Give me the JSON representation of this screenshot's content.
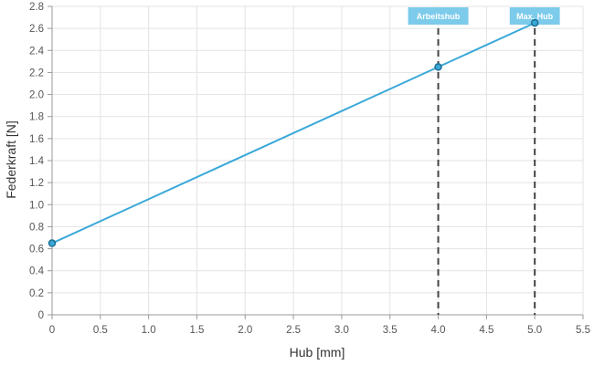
{
  "chart_data": {
    "type": "line",
    "xlabel": "Hub [mm]",
    "ylabel": "Federkraft [N]",
    "xlim": [
      0,
      5.5
    ],
    "ylim": [
      0,
      2.8
    ],
    "x_ticks": [
      0,
      0.5,
      1.0,
      1.5,
      2.0,
      2.5,
      3.0,
      3.5,
      4.0,
      4.5,
      5.0,
      5.5
    ],
    "x_tick_labels": [
      "0",
      "0.5",
      "1.0",
      "1.5",
      "2.0",
      "2.5",
      "3.0",
      "3.5",
      "4.0",
      "4.5",
      "5.0",
      "5.5"
    ],
    "y_ticks": [
      0,
      0.2,
      0.4,
      0.6,
      0.8,
      1.0,
      1.2,
      1.4,
      1.6,
      1.8,
      2.0,
      2.2,
      2.4,
      2.6,
      2.8
    ],
    "y_tick_labels": [
      "0",
      "0.2",
      "0.4",
      "0.6",
      "0.8",
      "1.0",
      "1.2",
      "1.4",
      "1.6",
      "1.8",
      "2.0",
      "2.2",
      "2.4",
      "2.6",
      "2.8"
    ],
    "grid": true,
    "series": [
      {
        "x": [
          0,
          4.0,
          5.0
        ],
        "y": [
          0.65,
          2.25,
          2.65
        ],
        "color": "#3aa9d8"
      }
    ],
    "markers": [
      {
        "x": 4.0,
        "label": "Arbeitshub"
      },
      {
        "x": 5.0,
        "label": "Max. Hub"
      }
    ],
    "colors": {
      "line": "#3aa9d8",
      "point_fill": "#3aa9d8",
      "point_stroke": "#1f6f96",
      "marker_line": "#444444",
      "marker_box": "#7ccbeb",
      "grid": "#e3e3e3",
      "axis": "#999999"
    }
  }
}
